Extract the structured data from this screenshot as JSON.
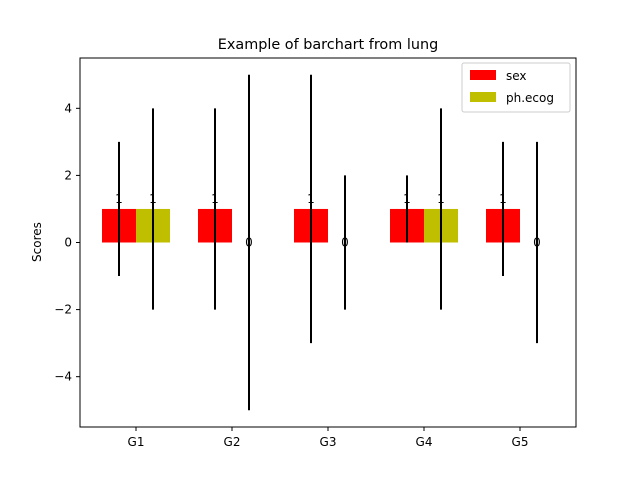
{
  "chart_data": {
    "type": "bar",
    "title": "Example of barchart from lung",
    "xlabel": "",
    "ylabel": "Scores",
    "categories": [
      "G1",
      "G2",
      "G3",
      "G4",
      "G5"
    ],
    "ylim": [
      -5.5,
      5.5
    ],
    "yticks": [
      -4,
      -2,
      0,
      2,
      4
    ],
    "legend_position": "top-right",
    "grid": false,
    "series": [
      {
        "name": "sex",
        "color": "#ff0000",
        "values": [
          1,
          1,
          1,
          1,
          1
        ],
        "error_low": [
          -1,
          -2,
          -3,
          0,
          -1
        ],
        "error_high": [
          3,
          4,
          5,
          2,
          3
        ],
        "labels": [
          "1",
          "1",
          "1",
          "1",
          "1"
        ]
      },
      {
        "name": "ph.ecog",
        "color": "#bfbf00",
        "values": [
          1,
          0,
          0,
          1,
          0
        ],
        "error_low": [
          -2,
          -5,
          -2,
          -2,
          -3
        ],
        "error_high": [
          4,
          5,
          2,
          4,
          3
        ],
        "labels": [
          "1",
          "0",
          "0",
          "1",
          "0"
        ]
      }
    ]
  }
}
